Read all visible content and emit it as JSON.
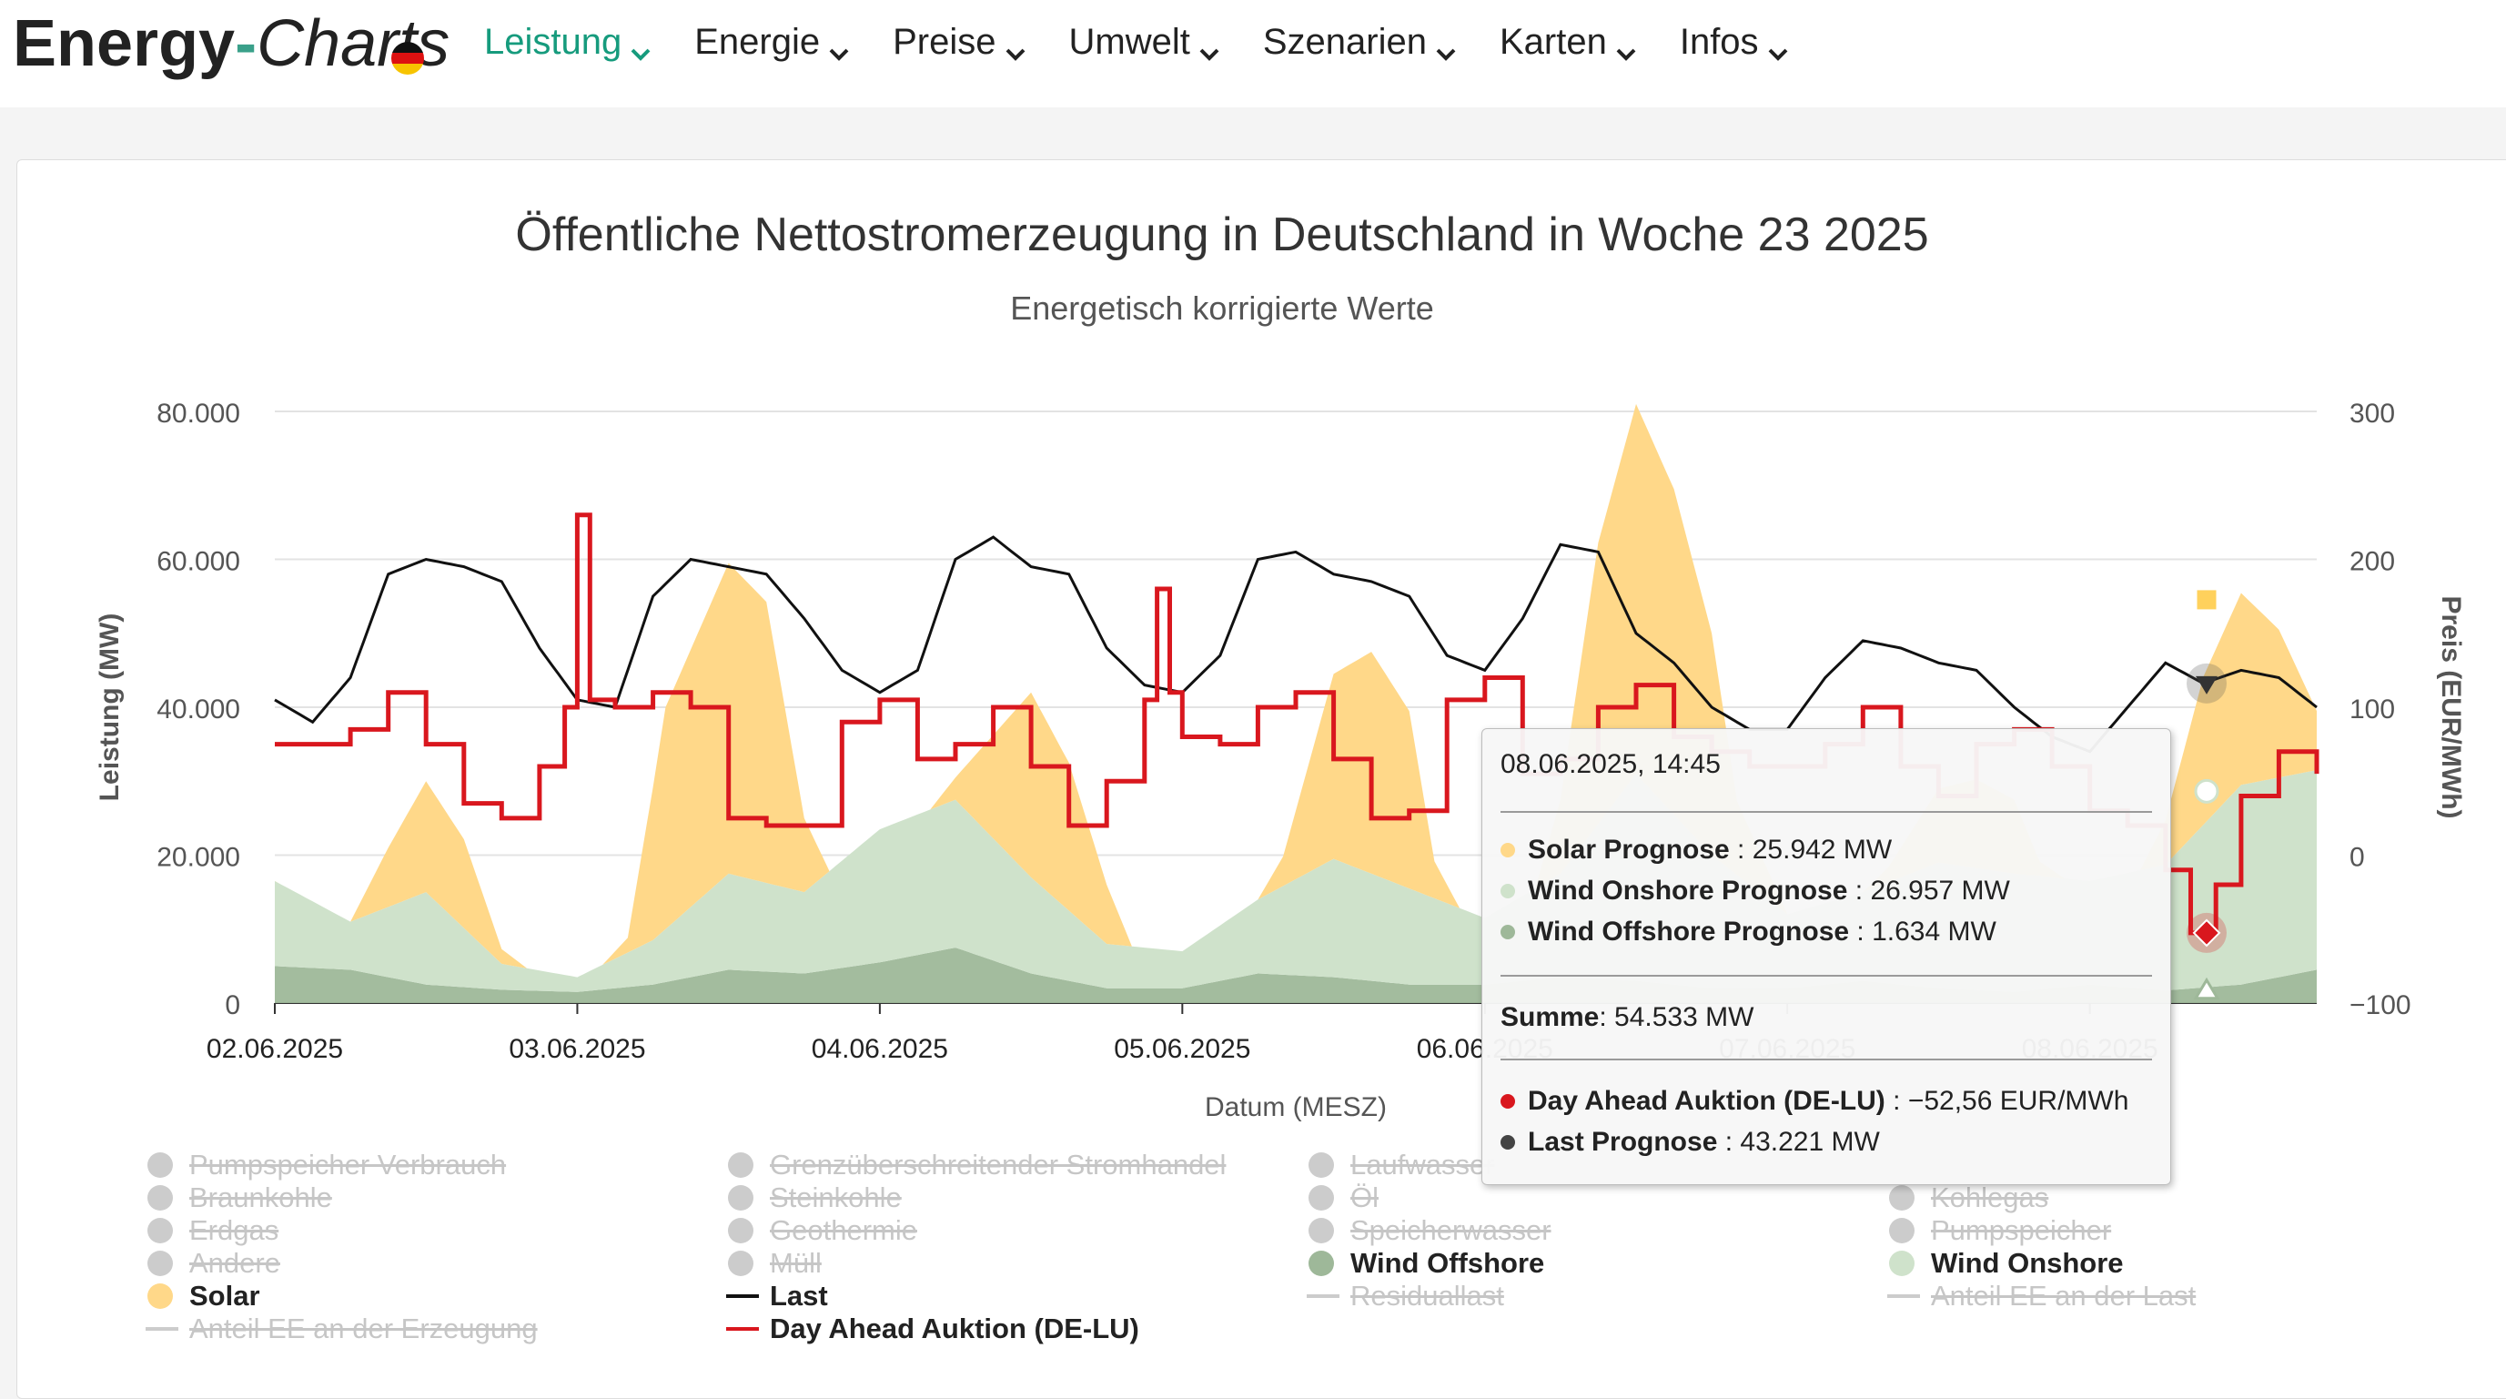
{
  "nav": {
    "logo": {
      "part1": "Energy",
      "part2": "-",
      "part3": "Charts"
    },
    "items": [
      {
        "label": "Leistung",
        "active": true
      },
      {
        "label": "Energie",
        "active": false
      },
      {
        "label": "Preise",
        "active": false
      },
      {
        "label": "Umwelt",
        "active": false
      },
      {
        "label": "Szenarien",
        "active": false
      },
      {
        "label": "Karten",
        "active": false
      },
      {
        "label": "Infos",
        "active": false
      }
    ],
    "accent_color": "#169b7d"
  },
  "chart": {
    "title": "Öffentliche Nettostromerzeugung in Deutschland in Woche 23 2025",
    "subtitle": "Energetisch korrigierte Werte"
  },
  "chart_data": {
    "type": "area",
    "title": "Öffentliche Nettostromerzeugung in Deutschland in Woche 23 2025",
    "subtitle": "Energetisch korrigierte Werte",
    "xlabel": "Datum (MESZ)",
    "ylabel": "Leistung (MW)",
    "y2label": "Preis (EUR/MWh)",
    "ylim": [
      0,
      80000
    ],
    "y2lim": [
      -100,
      300
    ],
    "yticks": [
      "0",
      "20.000",
      "40.000",
      "60.000",
      "80.000"
    ],
    "y2ticks": [
      "−100",
      "0",
      "100",
      "200",
      "300"
    ],
    "xticks": [
      "02.06.2025",
      "03.06.2025",
      "04.06.2025",
      "05.06.2025",
      "06.06.2025",
      "07.06.2025",
      "08.06.2025"
    ],
    "x_start": "02.06.2025 00:00",
    "x_end": "08.06.2025 18:00",
    "grid": true,
    "series": [
      {
        "name": "Wind Offshore",
        "kind": "area",
        "color": "#9eb899",
        "x_hours": [
          0,
          6,
          12,
          18,
          24,
          30,
          36,
          42,
          48,
          54,
          60,
          66,
          72,
          78,
          84,
          90,
          96,
          102,
          108,
          114,
          120,
          126,
          132,
          138,
          144,
          150,
          156,
          162
        ],
        "values": [
          5000,
          4500,
          2500,
          1800,
          1500,
          2500,
          4500,
          4000,
          5500,
          7500,
          4000,
          2000,
          2000,
          4000,
          3500,
          2500,
          2500,
          3500,
          3000,
          2000,
          2000,
          3000,
          2000,
          1500,
          2500,
          1700,
          2500,
          4500
        ]
      },
      {
        "name": "Wind Onshore",
        "kind": "area",
        "color": "#cfe2cb",
        "x_hours": [
          0,
          6,
          12,
          18,
          24,
          30,
          36,
          42,
          48,
          54,
          60,
          66,
          72,
          78,
          84,
          90,
          96,
          102,
          108,
          114,
          120,
          126,
          132,
          138,
          144,
          150,
          156,
          162
        ],
        "values": [
          11500,
          6500,
          12500,
          3500,
          2000,
          6000,
          13000,
          11000,
          18000,
          20000,
          13000,
          6000,
          5000,
          10000,
          16000,
          13000,
          9000,
          14000,
          28000,
          18000,
          10000,
          12000,
          17000,
          16000,
          14000,
          17000,
          27000,
          27000
        ]
      },
      {
        "name": "Solar",
        "kind": "area",
        "color": "#ffd889",
        "x_hours": [
          0,
          4,
          6,
          9,
          12,
          15,
          18,
          20,
          22,
          26,
          28,
          31,
          36,
          39,
          42,
          44,
          46,
          52,
          54,
          57,
          60,
          63,
          66,
          68,
          72,
          78,
          80,
          84,
          87,
          90,
          92,
          94,
          100,
          102,
          105,
          108,
          111,
          114,
          116,
          120,
          126,
          128,
          132,
          135,
          138,
          140,
          142,
          148,
          150,
          153,
          156,
          159,
          162
        ],
        "values": [
          0,
          0,
          0,
          8000,
          15000,
          12000,
          2000,
          0,
          0,
          0,
          2000,
          30000,
          42000,
          38000,
          10000,
          0,
          0,
          0,
          3000,
          14000,
          25000,
          20000,
          8000,
          0,
          0,
          0,
          4000,
          25000,
          30000,
          24000,
          5000,
          0,
          0,
          10000,
          38000,
          50000,
          44000,
          30000,
          10000,
          0,
          0,
          2000,
          10000,
          12000,
          10000,
          2000,
          0,
          0,
          6000,
          20000,
          25942,
          20000,
          8000
        ]
      },
      {
        "name": "Last",
        "kind": "line",
        "color": "#111111",
        "x_hours": [
          0,
          3,
          6,
          9,
          12,
          15,
          18,
          21,
          24,
          27,
          30,
          33,
          36,
          39,
          42,
          45,
          48,
          51,
          54,
          57,
          60,
          63,
          66,
          69,
          72,
          75,
          78,
          81,
          84,
          87,
          90,
          93,
          96,
          99,
          102,
          105,
          108,
          111,
          114,
          117,
          120,
          123,
          126,
          129,
          132,
          135,
          138,
          141,
          144,
          147,
          150,
          153,
          156,
          159,
          162
        ],
        "values": [
          41000,
          38000,
          44000,
          58000,
          60000,
          59000,
          57000,
          48000,
          41000,
          40000,
          55000,
          60000,
          59000,
          58000,
          52000,
          45000,
          42000,
          45000,
          60000,
          63000,
          59000,
          58000,
          48000,
          43000,
          42000,
          47000,
          60000,
          61000,
          58000,
          57000,
          55000,
          47000,
          45000,
          52000,
          62000,
          61000,
          50000,
          46000,
          40000,
          37000,
          37000,
          44000,
          49000,
          48000,
          46000,
          45000,
          40000,
          36000,
          34000,
          40000,
          46000,
          43221,
          45000,
          44000,
          40000
        ]
      },
      {
        "name": "Day Ahead Auktion (DE-LU)",
        "kind": "line",
        "axis": "price",
        "color": "#d9171e",
        "x_hours": [
          0,
          3,
          6,
          9,
          12,
          15,
          18,
          21,
          23,
          24,
          25,
          27,
          30,
          33,
          36,
          39,
          42,
          45,
          48,
          51,
          54,
          57,
          60,
          63,
          66,
          69,
          70,
          71,
          72,
          75,
          78,
          81,
          84,
          87,
          90,
          93,
          96,
          99,
          102,
          105,
          108,
          111,
          114,
          117,
          120,
          123,
          126,
          129,
          132,
          135,
          138,
          141,
          144,
          147,
          150,
          152,
          154,
          156,
          159,
          162
        ],
        "values": [
          75,
          75,
          85,
          110,
          75,
          35,
          25,
          60,
          100,
          230,
          105,
          100,
          110,
          100,
          25,
          20,
          20,
          90,
          105,
          65,
          75,
          100,
          60,
          20,
          50,
          105,
          180,
          110,
          80,
          75,
          100,
          110,
          65,
          25,
          30,
          105,
          120,
          55,
          65,
          100,
          115,
          80,
          70,
          60,
          60,
          75,
          100,
          60,
          40,
          75,
          85,
          60,
          30,
          20,
          -10,
          -52.56,
          -20,
          40,
          70,
          55
        ]
      }
    ],
    "tooltip": {
      "header": "08.06.2025, 14:45",
      "rows": [
        {
          "name": "Solar Prognose",
          "value": "25.942 MW",
          "color": "#ffd889"
        },
        {
          "name": "Wind Onshore Prognose",
          "value": "26.957 MW",
          "color": "#cfe2cb"
        },
        {
          "name": "Wind Offshore Prognose",
          "value": "1.634 MW",
          "color": "#9eb899"
        }
      ],
      "sum_label": "Summe",
      "sum_value": "54.533 MW",
      "rows2": [
        {
          "name": "Day Ahead Auktion (DE-LU)",
          "value": "−52,56 EUR/MWh",
          "color": "#d9171e"
        },
        {
          "name": "Last Prognose",
          "value": "43.221 MW",
          "color": "#444444"
        }
      ]
    },
    "legend": [
      {
        "label": "Pumpspeicher Verbrauch",
        "marker": "dot",
        "color": "#cccccc",
        "enabled": false
      },
      {
        "label": "Grenzüberschreitender Stromhandel",
        "marker": "dot",
        "color": "#cccccc",
        "enabled": false
      },
      {
        "label": "Laufwasser",
        "marker": "dot",
        "color": "#cccccc",
        "enabled": false
      },
      {
        "label": "",
        "marker": "none",
        "color": "#cccccc",
        "enabled": false
      },
      {
        "label": "Braunkohle",
        "marker": "dot",
        "color": "#cccccc",
        "enabled": false
      },
      {
        "label": "Steinkohle",
        "marker": "dot",
        "color": "#cccccc",
        "enabled": false
      },
      {
        "label": "Öl",
        "marker": "dot",
        "color": "#cccccc",
        "enabled": false
      },
      {
        "label": "Kohlegas",
        "marker": "dot",
        "color": "#cccccc",
        "enabled": false
      },
      {
        "label": "Erdgas",
        "marker": "dot",
        "color": "#cccccc",
        "enabled": false
      },
      {
        "label": "Geothermie",
        "marker": "dot",
        "color": "#cccccc",
        "enabled": false
      },
      {
        "label": "Speicherwasser",
        "marker": "dot",
        "color": "#cccccc",
        "enabled": false
      },
      {
        "label": "Pumpspeicher",
        "marker": "dot",
        "color": "#cccccc",
        "enabled": false
      },
      {
        "label": "Andere",
        "marker": "dot",
        "color": "#cccccc",
        "enabled": false
      },
      {
        "label": "Müll",
        "marker": "dot",
        "color": "#cccccc",
        "enabled": false
      },
      {
        "label": "Wind Offshore",
        "marker": "dot",
        "color": "#9eb899",
        "enabled": true
      },
      {
        "label": "Wind Onshore",
        "marker": "dot",
        "color": "#cfe2cb",
        "enabled": true
      },
      {
        "label": "Solar",
        "marker": "dot",
        "color": "#ffd889",
        "enabled": true
      },
      {
        "label": "Last",
        "marker": "line",
        "color": "#111111",
        "enabled": true
      },
      {
        "label": "Residuallast",
        "marker": "line",
        "color": "#cccccc",
        "enabled": false
      },
      {
        "label": "Anteil EE an der Last",
        "marker": "line",
        "color": "#cccccc",
        "enabled": false
      },
      {
        "label": "Anteil EE an der Erzeugung",
        "marker": "line",
        "color": "#cccccc",
        "enabled": false
      },
      {
        "label": "Day Ahead Auktion (DE-LU)",
        "marker": "line",
        "color": "#d9171e",
        "enabled": true
      }
    ]
  }
}
